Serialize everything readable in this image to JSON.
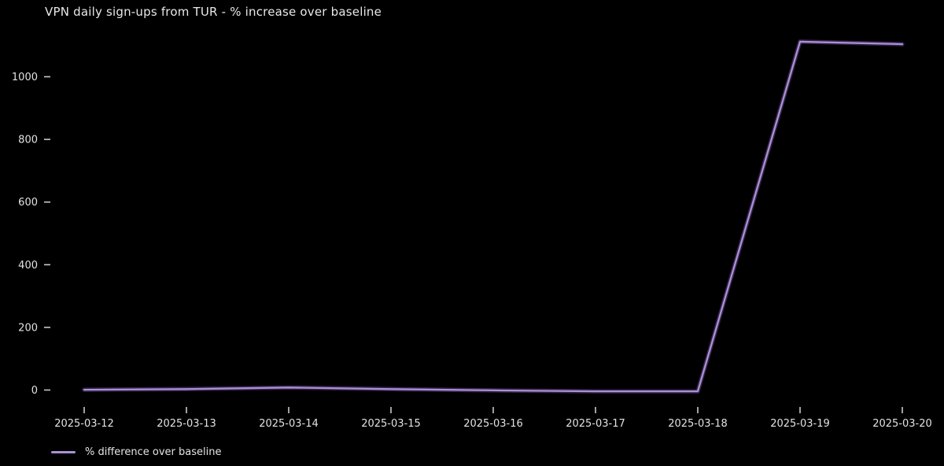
{
  "chart_data": {
    "type": "line",
    "title": "VPN daily sign-ups from TUR - % increase over baseline",
    "xlabel": "",
    "ylabel": "",
    "x": [
      "2025-03-12",
      "2025-03-13",
      "2025-03-14",
      "2025-03-15",
      "2025-03-16",
      "2025-03-17",
      "2025-03-18",
      "2025-03-19",
      "2025-03-20"
    ],
    "series": [
      {
        "name": "% difference over baseline",
        "values": [
          1,
          3,
          8,
          3,
          -1,
          -4,
          -4,
          1112,
          1104
        ],
        "color": "#ab90d4",
        "glow_color": "#5d3f85"
      }
    ],
    "yticks": [
      0,
      200,
      400,
      600,
      800,
      1000
    ],
    "ylim": [
      -40,
      1135
    ],
    "grid": false,
    "legend_position": "bottom-left",
    "background": "#000000",
    "text_color": "#e2e2e2",
    "tick_color": "#c8c8c8"
  }
}
